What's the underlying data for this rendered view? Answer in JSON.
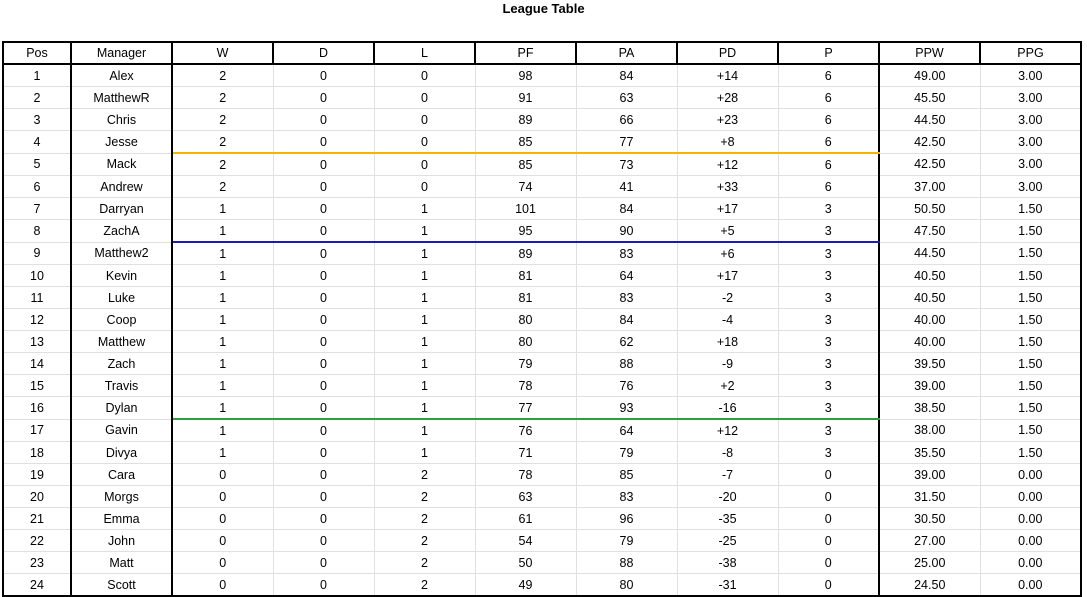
{
  "title": "League Table",
  "columns": {
    "pos": "Pos",
    "manager": "Manager",
    "w": "W",
    "d": "D",
    "l": "L",
    "pf": "PF",
    "pa": "PA",
    "pd": "PD",
    "p": "P",
    "ppw": "PPW",
    "ppg": "PPG"
  },
  "divider_colors": {
    "after_4": "#f4b400",
    "after_8": "#1a1ab8",
    "after_16": "#2e9e44"
  },
  "rows": [
    {
      "pos": "1",
      "manager": "Alex",
      "w": "2",
      "d": "0",
      "l": "0",
      "pf": "98",
      "pa": "84",
      "pd": "+14",
      "p": "6",
      "ppw": "49.00",
      "ppg": "3.00"
    },
    {
      "pos": "2",
      "manager": "MatthewR",
      "w": "2",
      "d": "0",
      "l": "0",
      "pf": "91",
      "pa": "63",
      "pd": "+28",
      "p": "6",
      "ppw": "45.50",
      "ppg": "3.00"
    },
    {
      "pos": "3",
      "manager": "Chris",
      "w": "2",
      "d": "0",
      "l": "0",
      "pf": "89",
      "pa": "66",
      "pd": "+23",
      "p": "6",
      "ppw": "44.50",
      "ppg": "3.00"
    },
    {
      "pos": "4",
      "manager": "Jesse",
      "w": "2",
      "d": "0",
      "l": "0",
      "pf": "85",
      "pa": "77",
      "pd": "+8",
      "p": "6",
      "ppw": "42.50",
      "ppg": "3.00"
    },
    {
      "pos": "5",
      "manager": "Mack",
      "w": "2",
      "d": "0",
      "l": "0",
      "pf": "85",
      "pa": "73",
      "pd": "+12",
      "p": "6",
      "ppw": "42.50",
      "ppg": "3.00"
    },
    {
      "pos": "6",
      "manager": "Andrew",
      "w": "2",
      "d": "0",
      "l": "0",
      "pf": "74",
      "pa": "41",
      "pd": "+33",
      "p": "6",
      "ppw": "37.00",
      "ppg": "3.00"
    },
    {
      "pos": "7",
      "manager": "Darryan",
      "w": "1",
      "d": "0",
      "l": "1",
      "pf": "101",
      "pa": "84",
      "pd": "+17",
      "p": "3",
      "ppw": "50.50",
      "ppg": "1.50"
    },
    {
      "pos": "8",
      "manager": "ZachA",
      "w": "1",
      "d": "0",
      "l": "1",
      "pf": "95",
      "pa": "90",
      "pd": "+5",
      "p": "3",
      "ppw": "47.50",
      "ppg": "1.50"
    },
    {
      "pos": "9",
      "manager": "Matthew2",
      "w": "1",
      "d": "0",
      "l": "1",
      "pf": "89",
      "pa": "83",
      "pd": "+6",
      "p": "3",
      "ppw": "44.50",
      "ppg": "1.50"
    },
    {
      "pos": "10",
      "manager": "Kevin",
      "w": "1",
      "d": "0",
      "l": "1",
      "pf": "81",
      "pa": "64",
      "pd": "+17",
      "p": "3",
      "ppw": "40.50",
      "ppg": "1.50"
    },
    {
      "pos": "11",
      "manager": "Luke",
      "w": "1",
      "d": "0",
      "l": "1",
      "pf": "81",
      "pa": "83",
      "pd": "-2",
      "p": "3",
      "ppw": "40.50",
      "ppg": "1.50"
    },
    {
      "pos": "12",
      "manager": "Coop",
      "w": "1",
      "d": "0",
      "l": "1",
      "pf": "80",
      "pa": "84",
      "pd": "-4",
      "p": "3",
      "ppw": "40.00",
      "ppg": "1.50"
    },
    {
      "pos": "13",
      "manager": "Matthew",
      "w": "1",
      "d": "0",
      "l": "1",
      "pf": "80",
      "pa": "62",
      "pd": "+18",
      "p": "3",
      "ppw": "40.00",
      "ppg": "1.50"
    },
    {
      "pos": "14",
      "manager": "Zach",
      "w": "1",
      "d": "0",
      "l": "1",
      "pf": "79",
      "pa": "88",
      "pd": "-9",
      "p": "3",
      "ppw": "39.50",
      "ppg": "1.50"
    },
    {
      "pos": "15",
      "manager": "Travis",
      "w": "1",
      "d": "0",
      "l": "1",
      "pf": "78",
      "pa": "76",
      "pd": "+2",
      "p": "3",
      "ppw": "39.00",
      "ppg": "1.50"
    },
    {
      "pos": "16",
      "manager": "Dylan",
      "w": "1",
      "d": "0",
      "l": "1",
      "pf": "77",
      "pa": "93",
      "pd": "-16",
      "p": "3",
      "ppw": "38.50",
      "ppg": "1.50"
    },
    {
      "pos": "17",
      "manager": "Gavin",
      "w": "1",
      "d": "0",
      "l": "1",
      "pf": "76",
      "pa": "64",
      "pd": "+12",
      "p": "3",
      "ppw": "38.00",
      "ppg": "1.50"
    },
    {
      "pos": "18",
      "manager": "Divya",
      "w": "1",
      "d": "0",
      "l": "1",
      "pf": "71",
      "pa": "79",
      "pd": "-8",
      "p": "3",
      "ppw": "35.50",
      "ppg": "1.50"
    },
    {
      "pos": "19",
      "manager": "Cara",
      "w": "0",
      "d": "0",
      "l": "2",
      "pf": "78",
      "pa": "85",
      "pd": "-7",
      "p": "0",
      "ppw": "39.00",
      "ppg": "0.00"
    },
    {
      "pos": "20",
      "manager": "Morgs",
      "w": "0",
      "d": "0",
      "l": "2",
      "pf": "63",
      "pa": "83",
      "pd": "-20",
      "p": "0",
      "ppw": "31.50",
      "ppg": "0.00"
    },
    {
      "pos": "21",
      "manager": "Emma",
      "w": "0",
      "d": "0",
      "l": "2",
      "pf": "61",
      "pa": "96",
      "pd": "-35",
      "p": "0",
      "ppw": "30.50",
      "ppg": "0.00"
    },
    {
      "pos": "22",
      "manager": "John",
      "w": "0",
      "d": "0",
      "l": "2",
      "pf": "54",
      "pa": "79",
      "pd": "-25",
      "p": "0",
      "ppw": "27.00",
      "ppg": "0.00"
    },
    {
      "pos": "23",
      "manager": "Matt",
      "w": "0",
      "d": "0",
      "l": "2",
      "pf": "50",
      "pa": "88",
      "pd": "-38",
      "p": "0",
      "ppw": "25.00",
      "ppg": "0.00"
    },
    {
      "pos": "24",
      "manager": "Scott",
      "w": "0",
      "d": "0",
      "l": "2",
      "pf": "49",
      "pa": "80",
      "pd": "-31",
      "p": "0",
      "ppw": "24.50",
      "ppg": "0.00"
    }
  ]
}
